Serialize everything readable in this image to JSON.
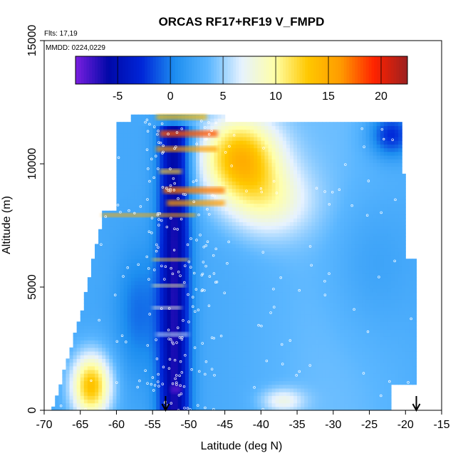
{
  "chart_data": {
    "type": "heatmap",
    "title": "ORCAS RF17+RF19 V_FMPD",
    "xlabel": "Latitude (deg N)",
    "ylabel": "Altitude (m)",
    "xlim": [
      -70,
      -15
    ],
    "ylim": [
      0,
      15000
    ],
    "x_ticks": [
      -70,
      -65,
      -60,
      -55,
      -50,
      -45,
      -40,
      -35,
      -30,
      -25,
      -20,
      -15
    ],
    "y_ticks": [
      0,
      5000,
      10000,
      15000
    ],
    "annotations": {
      "flights": "Flts: 17,19",
      "dates": "MMDD: 0224,0229"
    },
    "colorbar": {
      "range": [
        -9,
        22.5
      ],
      "ticks": [
        -5,
        0,
        5,
        10,
        15,
        20
      ],
      "colors": [
        "#7a1fe0",
        "#0008a8",
        "#0026d8",
        "#1d8ef0",
        "#5ab6ff",
        "#e6f2ff",
        "#ffffa8",
        "#ffc800",
        "#ff9a00",
        "#ff2200",
        "#9b2020"
      ]
    },
    "features": [
      {
        "lat": -52.0,
        "alt": 6500,
        "value": -5
      },
      {
        "lat": -47.5,
        "alt": 11000,
        "value": 12
      },
      {
        "lat": -40.0,
        "alt": 9000,
        "value": 9
      },
      {
        "lat": -63.5,
        "alt": 1200,
        "value": 11
      },
      {
        "lat": -57.5,
        "alt": 8000,
        "value": 14
      },
      {
        "lat": -23.0,
        "alt": 11000,
        "value": -3
      }
    ],
    "arrows": [
      {
        "lat": -53.2,
        "label": "down-arrow-marker"
      },
      {
        "lat": -18.5,
        "label": "down-arrow-marker"
      }
    ]
  }
}
